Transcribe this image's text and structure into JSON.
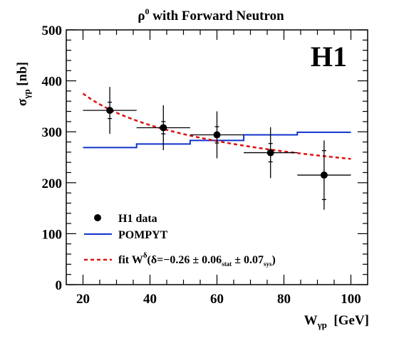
{
  "chart_data": {
    "type": "scatter",
    "title": {
      "base": "ρ",
      "sup": "0",
      "rest": " with Forward Neutron"
    },
    "logo": "H1",
    "xlabel": {
      "base": "W",
      "sub": "γp",
      "rest": "  [GeV]"
    },
    "ylabel": {
      "base": "σ",
      "sub": "γp",
      "rest": " [nb]"
    },
    "xlim": [
      15,
      105
    ],
    "ylim": [
      0,
      500
    ],
    "x_ticks": [
      "20",
      "40",
      "60",
      "80",
      "100"
    ],
    "y_ticks": [
      "0",
      "100",
      "200",
      "300",
      "400",
      "500"
    ],
    "grid": false,
    "legend_position": "bottom-left",
    "data": {
      "name": "H1 data",
      "color": "#000000",
      "points": [
        {
          "x": 28,
          "y": 342,
          "xlo": 20,
          "xhi": 36,
          "stat": 16,
          "tot": 46
        },
        {
          "x": 44,
          "y": 308,
          "xlo": 36,
          "xhi": 52,
          "stat": 12,
          "tot": 44
        },
        {
          "x": 60,
          "y": 294,
          "xlo": 52,
          "xhi": 68,
          "stat": 16,
          "tot": 46
        },
        {
          "x": 76,
          "y": 259,
          "xlo": 68,
          "xhi": 84,
          "stat": 18,
          "tot": 50
        },
        {
          "x": 92,
          "y": 215,
          "xlo": 84,
          "xhi": 100,
          "stat": 48,
          "tot": 68
        }
      ]
    },
    "pompyt": {
      "name": "POMPYT",
      "color": "#1133cc",
      "steps": [
        {
          "x0": 20,
          "x1": 36,
          "y": 269
        },
        {
          "x0": 36,
          "x1": 52,
          "y": 276
        },
        {
          "x0": 52,
          "x1": 68,
          "y": 283
        },
        {
          "x0": 68,
          "x1": 84,
          "y": 294
        },
        {
          "x0": 84,
          "x1": 100,
          "y": 299
        }
      ]
    },
    "fit": {
      "color": "#dd1111",
      "norm": 375,
      "x_ref": 20,
      "delta": -0.26,
      "x_range": [
        20,
        100
      ],
      "label": {
        "lead": "fit W",
        "sup": "δ",
        "open": "(δ=",
        "value": "−0.26 ± 0.06",
        "stat": "stat",
        "mid": " ± 0.07",
        "sys": "sys",
        "close": ")"
      }
    }
  }
}
